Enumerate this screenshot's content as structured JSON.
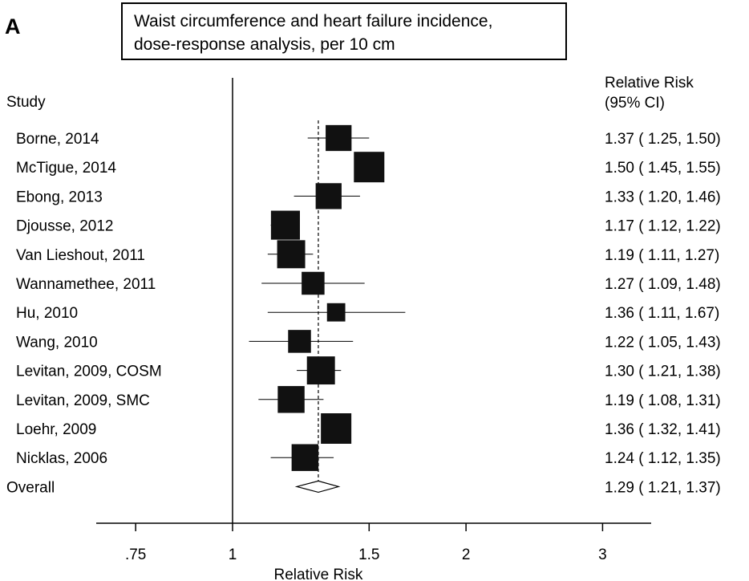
{
  "panel_label": "A",
  "chart_data": {
    "type": "forest",
    "title_line1": "Waist circumference and heart failure incidence,",
    "title_line2": "dose-response analysis, per 10 cm",
    "study_header": "Study",
    "rr_header_line1": "Relative Risk",
    "rr_header_line2": "(95% CI)",
    "xlabel": "Relative Risk",
    "x_scale": "log",
    "xlim": [
      0.7,
      3.3
    ],
    "null_line": 1,
    "overall_line": 1.29,
    "ticks": [
      {
        "value": 0.75,
        "label": ".75"
      },
      {
        "value": 1,
        "label": "1"
      },
      {
        "value": 1.5,
        "label": "1.5"
      },
      {
        "value": 2,
        "label": "2"
      },
      {
        "value": 3,
        "label": "3"
      }
    ],
    "studies": [
      {
        "name": "Borne, 2014",
        "rr": 1.37,
        "lo": 1.25,
        "hi": 1.5,
        "weight": 0.85,
        "text": "1.37 ( 1.25, 1.50)"
      },
      {
        "name": "McTigue, 2014",
        "rr": 1.5,
        "lo": 1.45,
        "hi": 1.55,
        "weight": 1.0,
        "text": "1.50 ( 1.45, 1.55)"
      },
      {
        "name": "Ebong, 2013",
        "rr": 1.33,
        "lo": 1.2,
        "hi": 1.46,
        "weight": 0.85,
        "text": "1.33 ( 1.20, 1.46)"
      },
      {
        "name": "Djousse, 2012",
        "rr": 1.17,
        "lo": 1.12,
        "hi": 1.22,
        "weight": 0.95,
        "text": "1.17 ( 1.12, 1.22)"
      },
      {
        "name": "Van Lieshout, 2011",
        "rr": 1.19,
        "lo": 1.11,
        "hi": 1.27,
        "weight": 0.92,
        "text": "1.19 ( 1.11, 1.27)"
      },
      {
        "name": "Wannamethee, 2011",
        "rr": 1.27,
        "lo": 1.09,
        "hi": 1.48,
        "weight": 0.75,
        "text": "1.27 ( 1.09, 1.48)"
      },
      {
        "name": "Hu, 2010",
        "rr": 1.36,
        "lo": 1.11,
        "hi": 1.67,
        "weight": 0.6,
        "text": "1.36 ( 1.11, 1.67)"
      },
      {
        "name": "Wang, 2010",
        "rr": 1.22,
        "lo": 1.05,
        "hi": 1.43,
        "weight": 0.75,
        "text": "1.22 ( 1.05, 1.43)"
      },
      {
        "name": "Levitan, 2009, COSM",
        "rr": 1.3,
        "lo": 1.21,
        "hi": 1.38,
        "weight": 0.92,
        "text": "1.30 ( 1.21, 1.38)"
      },
      {
        "name": "Levitan, 2009, SMC",
        "rr": 1.19,
        "lo": 1.08,
        "hi": 1.31,
        "weight": 0.88,
        "text": "1.19 ( 1.08, 1.31)"
      },
      {
        "name": "Loehr, 2009",
        "rr": 1.36,
        "lo": 1.32,
        "hi": 1.41,
        "weight": 1.0,
        "text": "1.36 ( 1.32, 1.41)"
      },
      {
        "name": "Nicklas, 2006",
        "rr": 1.24,
        "lo": 1.12,
        "hi": 1.35,
        "weight": 0.88,
        "text": "1.24 ( 1.12, 1.35)"
      }
    ],
    "overall": {
      "name": "Overall",
      "rr": 1.29,
      "lo": 1.21,
      "hi": 1.37,
      "text": "1.29 ( 1.21, 1.37)"
    }
  }
}
